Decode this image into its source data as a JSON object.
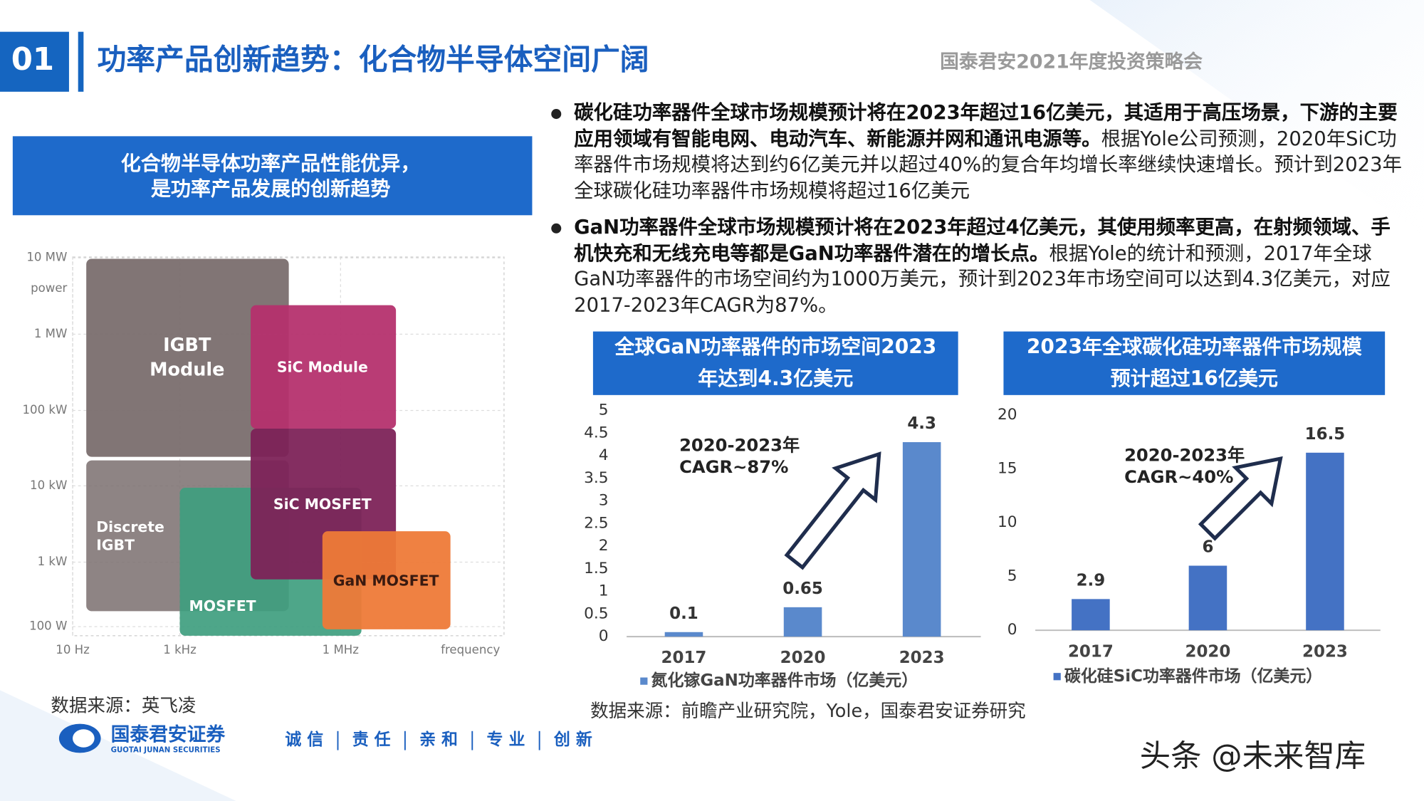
{
  "header": {
    "number": "01",
    "title": "功率产品创新趋势：化合物半导体空间广阔",
    "event": "国泰君安2021年度投资策略会"
  },
  "left_panel": {
    "headline": [
      "化合物半导体功率产品性能优异，",
      "是功率产品发展的创新趋势"
    ],
    "diagram": {
      "y_labels": [
        "10 MW",
        "power",
        "1 MW",
        "100 kW",
        "10 kW",
        "1 kW",
        "100 W"
      ],
      "x_labels": [
        "10 Hz",
        "1 kHz",
        "1 MHz",
        "frequency"
      ],
      "regions": [
        {
          "label": [
            "IGBT",
            "Module"
          ]
        },
        {
          "label": [
            "Discrete",
            "IGBT"
          ]
        },
        {
          "label": [
            "MOSFET"
          ]
        },
        {
          "label": [
            "SiC Module"
          ]
        },
        {
          "label": [
            "SiC MOSFET"
          ]
        },
        {
          "label": [
            "GaN MOSFET"
          ]
        }
      ]
    },
    "source": "数据来源：英飞凌"
  },
  "bullets": [
    {
      "bold": "碳化硅功率器件全球市场规模预计将在2023年超过16亿美元，其适用于高压场景，下游的主要应用领域有智能电网、电动汽车、新能源并网和通讯电源等。",
      "text": "根据Yole公司预测，2020年SiC功率器件市场规模将达到约6亿美元并以超过40%的复合年均增长率继续快速增长。预计到2023年全球碳化硅功率器件市场规模将超过16亿美元"
    },
    {
      "bold": "GaN功率器件全球市场规模预计将在2023年超过4亿美元，其使用频率更高，在射频领域、手机快充和无线充电等都是GaN功率器件潜在的增长点。",
      "text": "根据Yole的统计和预测，2017年全球GaN功率器件的市场空间约为1000万美元，预计到2023年市场空间可以达到4.3亿美元，对应2017-2023年CAGR为87%。"
    }
  ],
  "chart_data": [
    {
      "type": "bar",
      "title": [
        "全球GaN功率器件的市场空间2023",
        "年达到4.3亿美元"
      ],
      "annotation": [
        "2020-2023年",
        "CAGR~87%"
      ],
      "categories": [
        "2017",
        "2020",
        "2023"
      ],
      "series": [
        {
          "name": "氮化镓GaN功率器件市场（亿美元）",
          "color": "#5a89cc",
          "values": [
            0.1,
            0.65,
            4.3
          ]
        }
      ],
      "ylim": [
        0,
        5
      ],
      "yticks": [
        0,
        0.5,
        1,
        1.5,
        2,
        2.5,
        3,
        3.5,
        4,
        4.5,
        5
      ]
    },
    {
      "type": "bar",
      "title": [
        "2023年全球碳化硅功率器件市场规模",
        "预计超过16亿美元"
      ],
      "annotation": [
        "2020-2023年",
        "CAGR~40%"
      ],
      "categories": [
        "2017",
        "2020",
        "2023"
      ],
      "series": [
        {
          "name": "碳化硅SiC功率器件市场（亿美元）",
          "color": "#4472c4",
          "values": [
            2.9,
            6,
            16.5
          ]
        }
      ],
      "ylim": [
        0,
        20
      ],
      "yticks": [
        0,
        5,
        10,
        15,
        20
      ]
    }
  ],
  "chart_source": "数据来源：前瞻产业研究院，Yole，国泰君安证券研究",
  "footer": {
    "company": "国泰君安证券",
    "company_en": "GUOTAI JUNAN SECURITIES",
    "slogan": [
      "诚 信",
      "责 任",
      "亲 和",
      "专 业",
      "创 新"
    ],
    "watermark": "头条 @未来智库"
  }
}
